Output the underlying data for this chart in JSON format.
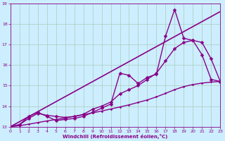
{
  "xlabel": "Windchill (Refroidissement éolien,°C)",
  "bg_color": "#cceeff",
  "grid_color": "#aaccbb",
  "line_color": "#880088",
  "xlim": [
    0,
    23
  ],
  "ylim": [
    13,
    19
  ],
  "yticks": [
    13,
    14,
    15,
    16,
    17,
    18,
    19
  ],
  "xticks": [
    0,
    1,
    2,
    3,
    4,
    5,
    6,
    7,
    8,
    9,
    10,
    11,
    12,
    13,
    14,
    15,
    16,
    17,
    18,
    19,
    20,
    21,
    22,
    23
  ],
  "series": [
    {
      "x": [
        0,
        1,
        2,
        3,
        4,
        5,
        6,
        7,
        8,
        9,
        10,
        11,
        12,
        13,
        14,
        15,
        16,
        17,
        18,
        19,
        20,
        21,
        22,
        23
      ],
      "y": [
        13.0,
        13.1,
        13.5,
        13.7,
        13.5,
        13.3,
        13.35,
        13.4,
        13.5,
        13.7,
        13.9,
        14.1,
        15.6,
        15.5,
        15.1,
        15.4,
        15.55,
        17.4,
        18.7,
        17.3,
        17.2,
        16.5,
        15.3,
        15.2
      ],
      "marker": "D",
      "markersize": 2.5,
      "linewidth": 1.0
    },
    {
      "x": [
        0,
        23
      ],
      "y": [
        13.0,
        18.6
      ],
      "marker": null,
      "markersize": 0,
      "linewidth": 1.2
    },
    {
      "x": [
        0,
        1,
        2,
        3,
        4,
        5,
        6,
        7,
        8,
        9,
        10,
        11,
        12,
        13,
        14,
        15,
        16,
        17,
        18,
        19,
        20,
        21,
        22,
        23
      ],
      "y": [
        13.0,
        13.05,
        13.12,
        13.2,
        13.28,
        13.35,
        13.42,
        13.5,
        13.58,
        13.67,
        13.76,
        13.86,
        13.96,
        14.06,
        14.18,
        14.3,
        14.45,
        14.62,
        14.8,
        14.95,
        15.05,
        15.12,
        15.17,
        15.2
      ],
      "marker": "D",
      "markersize": 1.5,
      "linewidth": 1.0
    },
    {
      "x": [
        0,
        1,
        2,
        3,
        4,
        5,
        6,
        7,
        8,
        9,
        10,
        11,
        12,
        13,
        14,
        15,
        16,
        17,
        18,
        19,
        20,
        21,
        22,
        23
      ],
      "y": [
        13.0,
        13.1,
        13.4,
        13.65,
        13.55,
        13.5,
        13.45,
        13.5,
        13.6,
        13.85,
        14.0,
        14.2,
        14.6,
        14.8,
        15.0,
        15.3,
        15.6,
        16.2,
        16.8,
        17.1,
        17.2,
        17.1,
        16.3,
        15.2
      ],
      "marker": "D",
      "markersize": 2.5,
      "linewidth": 1.0
    }
  ]
}
